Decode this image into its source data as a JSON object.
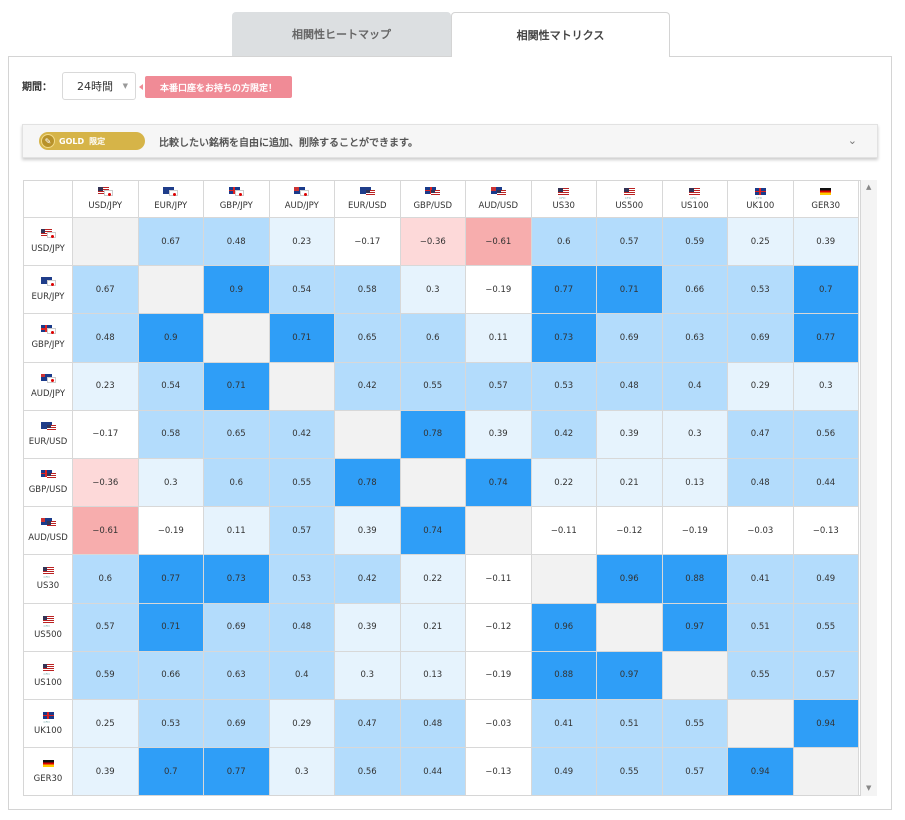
{
  "tabs": [
    {
      "label": "相関性ヒートマップ",
      "active": false
    },
    {
      "label": "相関性マトリクス",
      "active": true
    }
  ],
  "period": {
    "label": "期間：",
    "value": "24時間"
  },
  "promo": {
    "text": "本番口座をお持ちの方限定！"
  },
  "gold": {
    "badge": "GOLD",
    "limited": "限定",
    "description": "比較したい銘柄を自由に追加、削除することができます。"
  },
  "matrix": {
    "symbols": [
      {
        "label": "USD/JPY",
        "flag": "us-jp"
      },
      {
        "label": "EUR/JPY",
        "flag": "eu-jp"
      },
      {
        "label": "GBP/JPY",
        "flag": "gb-jp"
      },
      {
        "label": "AUD/JPY",
        "flag": "au-jp"
      },
      {
        "label": "EUR/USD",
        "flag": "eu-us"
      },
      {
        "label": "GBP/USD",
        "flag": "gb-us"
      },
      {
        "label": "AUD/USD",
        "flag": "au-us"
      },
      {
        "label": "US30",
        "flag": "us"
      },
      {
        "label": "US500",
        "flag": "us"
      },
      {
        "label": "US100",
        "flag": "us"
      },
      {
        "label": "UK100",
        "flag": "gb"
      },
      {
        "label": "GER30",
        "flag": "de"
      }
    ],
    "values": [
      [
        null,
        0.67,
        0.48,
        0.23,
        -0.17,
        -0.36,
        -0.61,
        0.6,
        0.57,
        0.59,
        0.25,
        0.39
      ],
      [
        0.67,
        null,
        0.9,
        0.54,
        0.58,
        0.3,
        -0.19,
        0.77,
        0.71,
        0.66,
        0.53,
        0.7
      ],
      [
        0.48,
        0.9,
        null,
        0.71,
        0.65,
        0.6,
        0.11,
        0.73,
        0.69,
        0.63,
        0.69,
        0.77
      ],
      [
        0.23,
        0.54,
        0.71,
        null,
        0.42,
        0.55,
        0.57,
        0.53,
        0.48,
        0.4,
        0.29,
        0.3
      ],
      [
        -0.17,
        0.58,
        0.65,
        0.42,
        null,
        0.78,
        0.39,
        0.42,
        0.39,
        0.3,
        0.47,
        0.56
      ],
      [
        -0.36,
        0.3,
        0.6,
        0.55,
        0.78,
        null,
        0.74,
        0.22,
        0.21,
        0.13,
        0.48,
        0.44
      ],
      [
        -0.61,
        -0.19,
        0.11,
        0.57,
        0.39,
        0.74,
        null,
        -0.11,
        -0.12,
        -0.19,
        -0.03,
        -0.13
      ],
      [
        0.6,
        0.77,
        0.73,
        0.53,
        0.42,
        0.22,
        -0.11,
        null,
        0.96,
        0.88,
        0.41,
        0.49
      ],
      [
        0.57,
        0.71,
        0.69,
        0.48,
        0.39,
        0.21,
        -0.12,
        0.96,
        null,
        0.97,
        0.51,
        0.55
      ],
      [
        0.59,
        0.66,
        0.63,
        0.4,
        0.3,
        0.13,
        -0.19,
        0.88,
        0.97,
        null,
        0.55,
        0.57
      ],
      [
        0.25,
        0.53,
        0.69,
        0.29,
        0.47,
        0.48,
        -0.03,
        0.41,
        0.51,
        0.55,
        null,
        0.94
      ],
      [
        0.39,
        0.7,
        0.77,
        0.3,
        0.56,
        0.44,
        -0.13,
        0.49,
        0.55,
        0.57,
        0.94,
        null
      ]
    ]
  },
  "colors": {
    "strong_positive": "#2f9ef7",
    "positive": "#b3dcfc",
    "weak_positive": "#e6f3fd",
    "neutral": "#ffffff",
    "weak_negative": "#fdd9d9",
    "negative": "#f7adad",
    "diagonal": "#f2f2f2"
  }
}
